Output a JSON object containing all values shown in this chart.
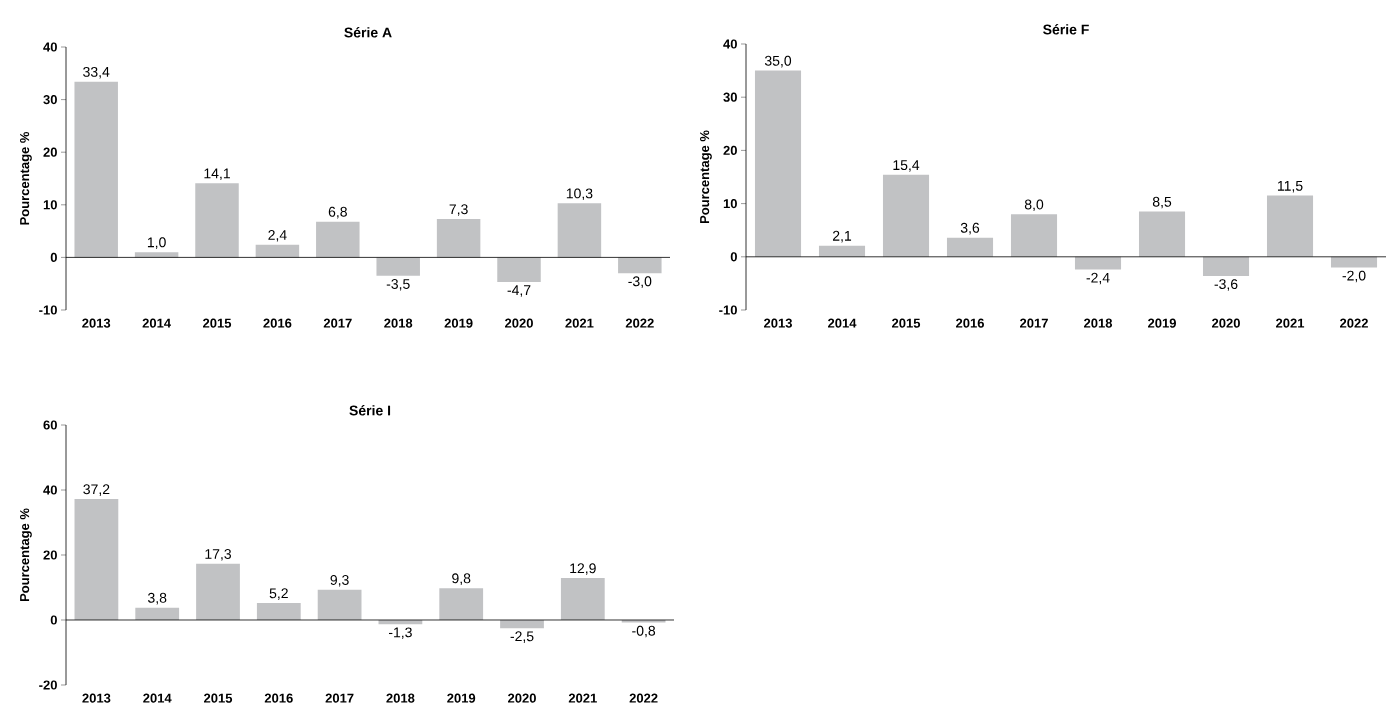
{
  "chart_data": [
    {
      "type": "bar",
      "title": "Série A",
      "ylabel": "Pourcentage %",
      "categories": [
        "2013",
        "2014",
        "2015",
        "2016",
        "2017",
        "2018",
        "2019",
        "2020",
        "2021",
        "2022"
      ],
      "values": [
        33.4,
        1.0,
        14.1,
        2.4,
        6.8,
        -3.5,
        7.3,
        -4.7,
        10.3,
        -3.0
      ],
      "value_labels": [
        "33,4",
        "1,0",
        "14,1",
        "2,4",
        "6,8",
        "-3,5",
        "7,3",
        "-4,7",
        "10,3",
        "-3,0"
      ],
      "color": "#c1c2c4",
      "ylim": [
        -10,
        40
      ],
      "yticks": [
        -10,
        0,
        10,
        20,
        30,
        40
      ]
    },
    {
      "type": "bar",
      "title": "Série F",
      "ylabel": "Pourcentage %",
      "categories": [
        "2013",
        "2014",
        "2015",
        "2016",
        "2017",
        "2018",
        "2019",
        "2020",
        "2021",
        "2022"
      ],
      "values": [
        35.0,
        2.1,
        15.4,
        3.6,
        8.0,
        -2.4,
        8.5,
        -3.6,
        11.5,
        -2.0
      ],
      "value_labels": [
        "35,0",
        "2,1",
        "15,4",
        "3,6",
        "8,0",
        "-2,4",
        "8,5",
        "-3,6",
        "11,5",
        "-2,0"
      ],
      "color": "#c1c2c4",
      "ylim": [
        -10,
        40
      ],
      "yticks": [
        -10,
        0,
        10,
        20,
        30,
        40
      ]
    },
    {
      "type": "bar",
      "title": "Série I",
      "ylabel": "Pourcentage %",
      "categories": [
        "2013",
        "2014",
        "2015",
        "2016",
        "2017",
        "2018",
        "2019",
        "2020",
        "2021",
        "2022"
      ],
      "values": [
        37.2,
        3.8,
        17.3,
        5.2,
        9.3,
        -1.3,
        9.8,
        -2.5,
        12.9,
        -0.8
      ],
      "value_labels": [
        "37,2",
        "3,8",
        "17,3",
        "5,2",
        "9,3",
        "-1,3",
        "9,8",
        "-2,5",
        "12,9",
        "-0,8"
      ],
      "color": "#c1c2c4",
      "ylim": [
        -20,
        60
      ],
      "yticks": [
        -20,
        0,
        20,
        40,
        60
      ]
    }
  ]
}
